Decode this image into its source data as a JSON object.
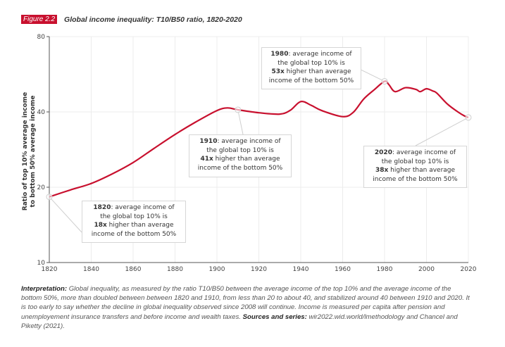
{
  "header": {
    "figure_label": "Figure 2.2",
    "title": "Global income inequality: T10/B50 ratio, 1820-2020"
  },
  "colors": {
    "accent": "#c8102e",
    "line": "#c8102e",
    "grid": "#ececec"
  },
  "chart_data": {
    "type": "line",
    "title": "Global income inequality: T10/B50 ratio, 1820-2020",
    "xlabel": "",
    "ylabel": [
      "Ratio of top 10% average income",
      "to bottom 50% average income"
    ],
    "xlim": [
      1820,
      2020
    ],
    "ylim": [
      10,
      80
    ],
    "yscale": "log",
    "grid": true,
    "xticks": [
      "1820",
      "1840",
      "1860",
      "1880",
      "1900",
      "1920",
      "1940",
      "1960",
      "1980",
      "2000",
      "2020"
    ],
    "yticks": [
      "10",
      "20",
      "40",
      "80"
    ],
    "series": [
      {
        "x": [
          1820,
          1830,
          1840,
          1850,
          1860,
          1870,
          1880,
          1890,
          1900,
          1905,
          1910,
          1920,
          1930,
          1935,
          1940,
          1945,
          1950,
          1960,
          1965,
          1970,
          1975,
          1980,
          1982,
          1985,
          1990,
          1995,
          1997,
          2000,
          2003,
          2005,
          2010,
          2015,
          2018,
          2020
        ],
        "y": [
          18.3,
          19.5,
          20.7,
          22.6,
          25.1,
          28.6,
          32.5,
          36.5,
          40.5,
          41.5,
          40.8,
          39.7,
          39.2,
          40.6,
          44,
          42.5,
          40.5,
          38.3,
          39.8,
          45,
          49,
          53,
          51.5,
          48.2,
          50,
          49.2,
          48.2,
          49.5,
          48.5,
          47.5,
          43,
          40,
          38.6,
          38
        ]
      }
    ],
    "annotations": [
      {
        "year": "1820",
        "text1": ": average income of",
        "text2": "the global top 10% is",
        "bold": "18x",
        "text3": " higher than average",
        "text4": "income of the bottom 50%"
      },
      {
        "year": "1910",
        "text1": ": average income of",
        "text2": "the global top 10% is",
        "bold": "41x",
        "text3": " higher than average",
        "text4": "income of the bottom 50%"
      },
      {
        "year": "1980",
        "text1": ": average income of",
        "text2": "the global top 10% is",
        "bold": "53x",
        "text3": " higher than average",
        "text4": "income of the bottom 50%"
      },
      {
        "year": "2020",
        "text1": ": average income of",
        "text2": "the global top 10% is",
        "bold": "38x",
        "text3": " higher than average",
        "text4": "income of the bottom 50%"
      }
    ]
  },
  "footer": {
    "interp_label": "Interpretation:",
    "interp_text": " Global inequality, as measured by the ratio T10/B50 between the average income of the top 10% and the average income of the bottom 50%, more than doubled between between 1820 and 1910, from less than 20 to about 40, and stabilized around 40 between 1910 and 2020. It is too early to say whether the decline in global inequality observed since 2008 will continue. Income is measured per capita after pension and unemployement insurance transfers and before income and wealth taxes. ",
    "sources_label": "Sources and series:",
    "sources_text": " wir2022.wid.world/lmethodology and Chancel and Piketty (2021)."
  }
}
